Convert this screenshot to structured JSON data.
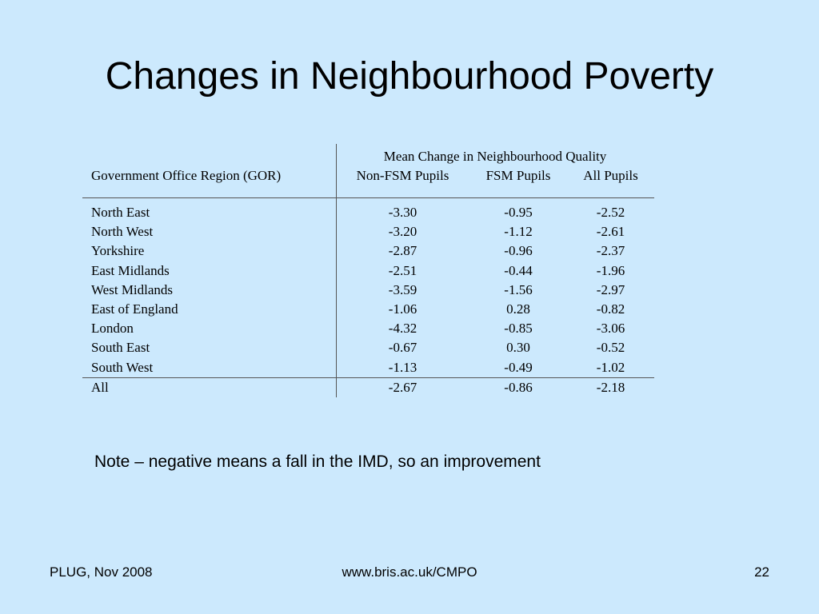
{
  "slide": {
    "title": "Changes in Neighbourhood Poverty",
    "note": "Note – negative means a fall in the IMD, so an improvement"
  },
  "table": {
    "group_header": "Mean Change in Neighbourhood Quality",
    "row_header": "Government Office Region (GOR)",
    "columns": [
      "Non-FSM Pupils",
      "FSM Pupils",
      "All Pupils"
    ],
    "rows": [
      {
        "region": "North East",
        "values": [
          "-3.30",
          "-0.95",
          "-2.52"
        ]
      },
      {
        "region": "North West",
        "values": [
          "-3.20",
          "-1.12",
          "-2.61"
        ]
      },
      {
        "region": "Yorkshire",
        "values": [
          "-2.87",
          "-0.96",
          "-2.37"
        ]
      },
      {
        "region": "East Midlands",
        "values": [
          "-2.51",
          "-0.44",
          "-1.96"
        ]
      },
      {
        "region": "West Midlands",
        "values": [
          "-3.59",
          "-1.56",
          "-2.97"
        ]
      },
      {
        "region": "East of England",
        "values": [
          "-1.06",
          "0.28",
          "-0.82"
        ]
      },
      {
        "region": "London",
        "values": [
          "-4.32",
          "-0.85",
          "-3.06"
        ]
      },
      {
        "region": "South East",
        "values": [
          "-0.67",
          "0.30",
          "-0.52"
        ]
      },
      {
        "region": "South West",
        "values": [
          "-1.13",
          "-0.49",
          "-1.02"
        ]
      }
    ],
    "total": {
      "region": "All",
      "values": [
        "-2.67",
        "-0.86",
        "-2.18"
      ]
    }
  },
  "footer": {
    "left": "PLUG, Nov 2008",
    "center": "www.bris.ac.uk/CMPO",
    "page_number": "22"
  }
}
